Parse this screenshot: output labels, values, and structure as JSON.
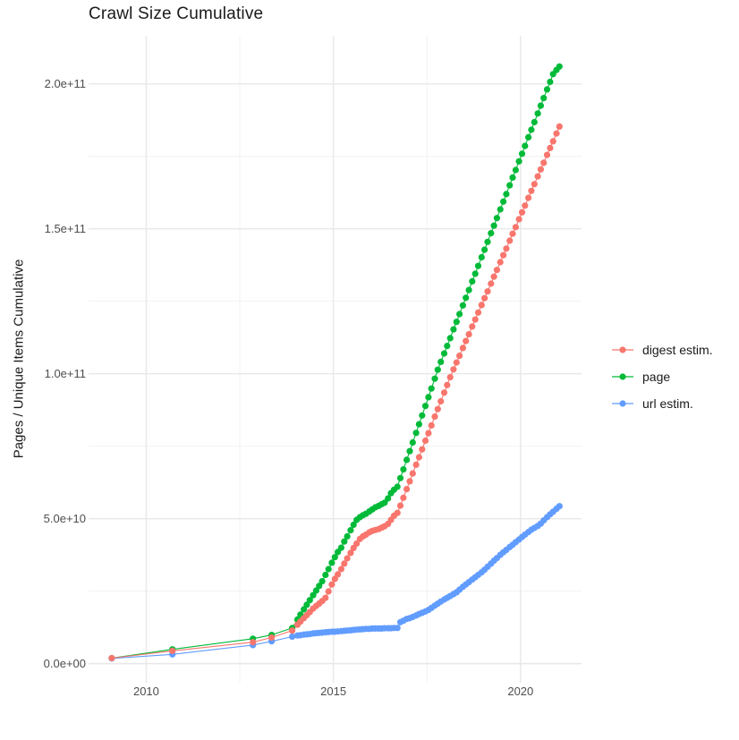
{
  "chart": {
    "title": "Crawl Size Cumulative",
    "y_axis_title": "Pages / Unique Items Cumulative"
  },
  "legend": {
    "position": "right",
    "items": [
      {
        "label": "digest estim.",
        "color": "#F8766D"
      },
      {
        "label": "page",
        "color": "#00BA38"
      },
      {
        "label": "url estim.",
        "color": "#619CFF"
      }
    ]
  },
  "chart_data": {
    "type": "scatter",
    "style": "points-with-line",
    "title": "Crawl Size Cumulative",
    "xlabel": "",
    "ylabel": "Pages / Unique Items Cumulative",
    "x_unit": "decimal year",
    "y_unit": "count; point values stored in billions (1e9)",
    "grid": true,
    "legend_position": "right",
    "xlim": [
      2008.46,
      2021.63
    ],
    "ylim_e9": [
      -6.6,
      216.6
    ],
    "x_ticks": [
      {
        "value": 2010,
        "label": "2010"
      },
      {
        "value": 2015,
        "label": "2015"
      },
      {
        "value": 2020,
        "label": "2020"
      }
    ],
    "x_minor_ticks": [
      2012.5,
      2017.5
    ],
    "y_ticks": [
      {
        "value_e9": 0,
        "label": "0.0e+00"
      },
      {
        "value_e9": 50,
        "label": "5.0e+10"
      },
      {
        "value_e9": 100,
        "label": "1.0e+11"
      },
      {
        "value_e9": 150,
        "label": "1.5e+11"
      },
      {
        "value_e9": 200,
        "label": "2.0e+11"
      }
    ],
    "y_minor_ticks_e9": [
      25,
      75,
      125,
      175
    ],
    "series": [
      {
        "name": "digest estim.",
        "color": "#F8766D",
        "points": [
          [
            2009.08,
            1.9
          ],
          [
            2010.7,
            4.4
          ],
          [
            2012.85,
            7.4
          ],
          [
            2013.35,
            9.0
          ],
          [
            2013.9,
            11.4
          ],
          [
            2014.04,
            13.4
          ],
          [
            2014.12,
            14.5
          ],
          [
            2014.21,
            15.7
          ],
          [
            2014.29,
            16.7
          ],
          [
            2014.37,
            17.8
          ],
          [
            2014.46,
            19.0
          ],
          [
            2014.54,
            19.9
          ],
          [
            2014.62,
            20.7
          ],
          [
            2014.7,
            21.6
          ],
          [
            2014.79,
            22.7
          ],
          [
            2014.87,
            24.9
          ],
          [
            2014.96,
            27.3
          ],
          [
            2015.04,
            29.2
          ],
          [
            2015.12,
            30.8
          ],
          [
            2015.21,
            32.6
          ],
          [
            2015.29,
            34.5
          ],
          [
            2015.37,
            36.3
          ],
          [
            2015.46,
            38.2
          ],
          [
            2015.54,
            39.9
          ],
          [
            2015.62,
            41.4
          ],
          [
            2015.71,
            43.0
          ],
          [
            2015.79,
            43.9
          ],
          [
            2015.87,
            44.5
          ],
          [
            2015.96,
            45.3
          ],
          [
            2016.04,
            45.8
          ],
          [
            2016.12,
            46.1
          ],
          [
            2016.21,
            46.4
          ],
          [
            2016.29,
            46.9
          ],
          [
            2016.37,
            47.4
          ],
          [
            2016.46,
            48.2
          ],
          [
            2016.54,
            49.6
          ],
          [
            2016.62,
            51.0
          ],
          [
            2016.71,
            52.0
          ],
          [
            2016.79,
            54.5
          ],
          [
            2016.87,
            57.2
          ],
          [
            2016.96,
            60.2
          ],
          [
            2017.04,
            62.9
          ],
          [
            2017.12,
            65.6
          ],
          [
            2017.21,
            68.6
          ],
          [
            2017.29,
            71.2
          ],
          [
            2017.37,
            73.9
          ],
          [
            2017.46,
            76.9
          ],
          [
            2017.54,
            79.5
          ],
          [
            2017.62,
            82.2
          ],
          [
            2017.71,
            85.2
          ],
          [
            2017.79,
            87.8
          ],
          [
            2017.87,
            90.5
          ],
          [
            2017.96,
            93.5
          ],
          [
            2018.04,
            96.1
          ],
          [
            2018.12,
            98.8
          ],
          [
            2018.21,
            101.5
          ],
          [
            2018.29,
            103.9
          ],
          [
            2018.37,
            106.2
          ],
          [
            2018.46,
            108.9
          ],
          [
            2018.54,
            111.3
          ],
          [
            2018.62,
            113.6
          ],
          [
            2018.71,
            116.3
          ],
          [
            2018.79,
            118.7
          ],
          [
            2018.87,
            121.1
          ],
          [
            2018.96,
            123.7
          ],
          [
            2019.04,
            126.1
          ],
          [
            2019.12,
            128.4
          ],
          [
            2019.21,
            131.1
          ],
          [
            2019.29,
            133.5
          ],
          [
            2019.37,
            135.8
          ],
          [
            2019.46,
            138.5
          ],
          [
            2019.54,
            140.9
          ],
          [
            2019.62,
            143.2
          ],
          [
            2019.71,
            145.9
          ],
          [
            2019.79,
            148.3
          ],
          [
            2019.87,
            150.6
          ],
          [
            2019.96,
            153.3
          ],
          [
            2020.04,
            155.7
          ],
          [
            2020.12,
            158.0
          ],
          [
            2020.21,
            160.7
          ],
          [
            2020.29,
            163.1
          ],
          [
            2020.37,
            165.4
          ],
          [
            2020.46,
            168.1
          ],
          [
            2020.54,
            170.5
          ],
          [
            2020.62,
            172.8
          ],
          [
            2020.71,
            175.5
          ],
          [
            2020.79,
            177.9
          ],
          [
            2020.87,
            180.2
          ],
          [
            2020.96,
            182.9
          ],
          [
            2021.04,
            185.3
          ]
        ]
      },
      {
        "name": "page",
        "color": "#00BA38",
        "points": [
          [
            2009.08,
            1.9
          ],
          [
            2010.7,
            4.9
          ],
          [
            2012.85,
            8.6
          ],
          [
            2013.35,
            9.9
          ],
          [
            2013.9,
            12.3
          ],
          [
            2014.04,
            15.2
          ],
          [
            2014.12,
            16.9
          ],
          [
            2014.21,
            18.7
          ],
          [
            2014.29,
            20.3
          ],
          [
            2014.37,
            21.9
          ],
          [
            2014.46,
            23.6
          ],
          [
            2014.54,
            25.2
          ],
          [
            2014.62,
            26.8
          ],
          [
            2014.7,
            28.4
          ],
          [
            2014.79,
            30.6
          ],
          [
            2014.87,
            32.6
          ],
          [
            2014.96,
            34.8
          ],
          [
            2015.04,
            36.7
          ],
          [
            2015.12,
            38.5
          ],
          [
            2015.21,
            40.0
          ],
          [
            2015.29,
            42.1
          ],
          [
            2015.37,
            43.9
          ],
          [
            2015.46,
            46.0
          ],
          [
            2015.54,
            47.9
          ],
          [
            2015.62,
            49.6
          ],
          [
            2015.71,
            50.5
          ],
          [
            2015.79,
            51.2
          ],
          [
            2015.87,
            51.7
          ],
          [
            2015.96,
            52.5
          ],
          [
            2016.04,
            53.2
          ],
          [
            2016.12,
            53.9
          ],
          [
            2016.21,
            54.4
          ],
          [
            2016.29,
            55.0
          ],
          [
            2016.37,
            55.5
          ],
          [
            2016.46,
            57.0
          ],
          [
            2016.54,
            58.8
          ],
          [
            2016.62,
            60.0
          ],
          [
            2016.71,
            61.0
          ],
          [
            2016.79,
            64.0
          ],
          [
            2016.87,
            67.0
          ],
          [
            2016.96,
            70.3
          ],
          [
            2017.04,
            73.3
          ],
          [
            2017.12,
            76.3
          ],
          [
            2017.21,
            79.6
          ],
          [
            2017.29,
            82.6
          ],
          [
            2017.37,
            85.6
          ],
          [
            2017.46,
            88.9
          ],
          [
            2017.54,
            91.9
          ],
          [
            2017.62,
            94.9
          ],
          [
            2017.71,
            98.3
          ],
          [
            2017.79,
            101.4
          ],
          [
            2017.87,
            104.1
          ],
          [
            2017.96,
            107.0
          ],
          [
            2018.04,
            109.6
          ],
          [
            2018.12,
            112.3
          ],
          [
            2018.21,
            115.3
          ],
          [
            2018.29,
            117.9
          ],
          [
            2018.37,
            120.6
          ],
          [
            2018.46,
            123.6
          ],
          [
            2018.54,
            126.2
          ],
          [
            2018.62,
            128.9
          ],
          [
            2018.71,
            131.9
          ],
          [
            2018.79,
            134.5
          ],
          [
            2018.87,
            137.2
          ],
          [
            2018.96,
            140.2
          ],
          [
            2019.04,
            142.8
          ],
          [
            2019.12,
            145.5
          ],
          [
            2019.21,
            148.5
          ],
          [
            2019.29,
            151.1
          ],
          [
            2019.37,
            153.7
          ],
          [
            2019.46,
            156.7
          ],
          [
            2019.54,
            159.4
          ],
          [
            2019.62,
            162.0
          ],
          [
            2019.71,
            165.0
          ],
          [
            2019.79,
            167.7
          ],
          [
            2019.87,
            170.3
          ],
          [
            2019.96,
            173.3
          ],
          [
            2020.04,
            175.9
          ],
          [
            2020.12,
            178.6
          ],
          [
            2020.21,
            181.6
          ],
          [
            2020.29,
            184.2
          ],
          [
            2020.37,
            186.8
          ],
          [
            2020.46,
            189.8
          ],
          [
            2020.54,
            192.5
          ],
          [
            2020.62,
            195.1
          ],
          [
            2020.71,
            198.1
          ],
          [
            2020.79,
            200.7
          ],
          [
            2020.87,
            203.4
          ],
          [
            2020.96,
            204.8
          ],
          [
            2021.04,
            206.0
          ]
        ]
      },
      {
        "name": "url estim.",
        "color": "#619CFF",
        "points": [
          [
            2009.08,
            1.8
          ],
          [
            2010.7,
            3.2
          ],
          [
            2012.85,
            6.4
          ],
          [
            2013.35,
            7.7
          ],
          [
            2013.9,
            9.3
          ],
          [
            2014.04,
            9.7
          ],
          [
            2014.12,
            9.8
          ],
          [
            2014.21,
            10.0
          ],
          [
            2014.29,
            10.1
          ],
          [
            2014.37,
            10.2
          ],
          [
            2014.46,
            10.4
          ],
          [
            2014.54,
            10.5
          ],
          [
            2014.62,
            10.6
          ],
          [
            2014.7,
            10.7
          ],
          [
            2014.79,
            10.8
          ],
          [
            2014.87,
            10.9
          ],
          [
            2014.96,
            11.0
          ],
          [
            2015.04,
            11.0
          ],
          [
            2015.12,
            11.1
          ],
          [
            2015.21,
            11.2
          ],
          [
            2015.29,
            11.3
          ],
          [
            2015.37,
            11.4
          ],
          [
            2015.46,
            11.5
          ],
          [
            2015.54,
            11.6
          ],
          [
            2015.62,
            11.7
          ],
          [
            2015.71,
            11.8
          ],
          [
            2015.79,
            11.9
          ],
          [
            2015.87,
            12.0
          ],
          [
            2015.96,
            12.0
          ],
          [
            2016.04,
            12.1
          ],
          [
            2016.12,
            12.1
          ],
          [
            2016.21,
            12.1
          ],
          [
            2016.29,
            12.1
          ],
          [
            2016.37,
            12.2
          ],
          [
            2016.46,
            12.2
          ],
          [
            2016.54,
            12.2
          ],
          [
            2016.62,
            12.3
          ],
          [
            2016.71,
            12.3
          ],
          [
            2016.79,
            14.3
          ],
          [
            2016.87,
            14.8
          ],
          [
            2016.96,
            15.4
          ],
          [
            2017.04,
            15.7
          ],
          [
            2017.12,
            16.1
          ],
          [
            2017.21,
            16.6
          ],
          [
            2017.29,
            17.1
          ],
          [
            2017.37,
            17.5
          ],
          [
            2017.46,
            18.0
          ],
          [
            2017.54,
            18.5
          ],
          [
            2017.62,
            19.2
          ],
          [
            2017.71,
            20.0
          ],
          [
            2017.79,
            20.7
          ],
          [
            2017.87,
            21.4
          ],
          [
            2017.96,
            22.1
          ],
          [
            2018.04,
            22.7
          ],
          [
            2018.12,
            23.3
          ],
          [
            2018.21,
            24.0
          ],
          [
            2018.29,
            24.6
          ],
          [
            2018.37,
            25.5
          ],
          [
            2018.46,
            26.5
          ],
          [
            2018.54,
            27.3
          ],
          [
            2018.62,
            28.1
          ],
          [
            2018.71,
            29.0
          ],
          [
            2018.79,
            29.8
          ],
          [
            2018.87,
            30.6
          ],
          [
            2018.96,
            31.5
          ],
          [
            2019.04,
            32.4
          ],
          [
            2019.12,
            33.4
          ],
          [
            2019.21,
            34.5
          ],
          [
            2019.29,
            35.5
          ],
          [
            2019.37,
            36.4
          ],
          [
            2019.46,
            37.5
          ],
          [
            2019.54,
            38.4
          ],
          [
            2019.62,
            39.2
          ],
          [
            2019.71,
            40.2
          ],
          [
            2019.79,
            41.0
          ],
          [
            2019.87,
            41.9
          ],
          [
            2019.96,
            42.8
          ],
          [
            2020.04,
            43.7
          ],
          [
            2020.12,
            44.5
          ],
          [
            2020.21,
            45.4
          ],
          [
            2020.29,
            46.2
          ],
          [
            2020.37,
            46.8
          ],
          [
            2020.46,
            47.5
          ],
          [
            2020.54,
            48.3
          ],
          [
            2020.62,
            49.4
          ],
          [
            2020.71,
            50.5
          ],
          [
            2020.79,
            51.5
          ],
          [
            2020.87,
            52.4
          ],
          [
            2020.96,
            53.4
          ],
          [
            2021.04,
            54.3
          ]
        ]
      }
    ],
    "colors": {
      "digest_estim": "#F8766D",
      "page": "#00BA38",
      "url_estim": "#619CFF",
      "grid_major": "#e8e8e8",
      "grid_minor": "#f0f0f0",
      "tick_label": "#4d4d4d",
      "text": "#1a1a1a",
      "background": "#ffffff"
    }
  }
}
